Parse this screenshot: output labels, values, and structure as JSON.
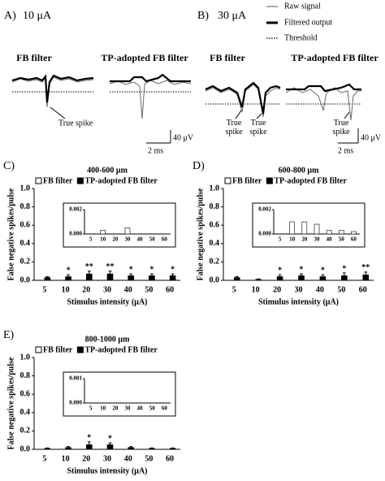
{
  "legend": {
    "items": [
      "Raw signal",
      "Filtered output",
      "Threshold"
    ]
  },
  "panel_a": {
    "label": "A)",
    "title": "10 μA",
    "subtitles": [
      "FB filter",
      "TP-adopted FB filter"
    ],
    "annotation": "True spike",
    "scale": [
      "40 μV",
      "2 ms"
    ]
  },
  "panel_b": {
    "label": "B)",
    "title": "30 μA",
    "subtitles": [
      "FB filter",
      "TP-adopted FB filter"
    ],
    "annotations": [
      "True\nspike",
      "True\nspike",
      "True\nspike"
    ],
    "scale": [
      "40 μV",
      "2 ms"
    ]
  },
  "chart_data": [
    {
      "type": "bar",
      "panel_label": "C)",
      "title": "400-600 μm",
      "xlabel": "Stimulus intensity (μA)",
      "ylabel": "False negative spikes/pulse",
      "categories": [
        "5",
        "10",
        "20",
        "30",
        "40",
        "50",
        "60"
      ],
      "series": [
        {
          "name": "FB filter",
          "color": "#ffffff",
          "values": [
            0,
            0.0003,
            0,
            0.0005,
            0,
            0,
            0
          ]
        },
        {
          "name": "TP-adopted FB filter",
          "color": "#000000",
          "values": [
            0.03,
            0.04,
            0.07,
            0.07,
            0.05,
            0.05,
            0.05
          ],
          "errors": [
            0.01,
            0.02,
            0.03,
            0.03,
            0.02,
            0.02,
            0.02
          ]
        }
      ],
      "significance": [
        null,
        "*",
        "**",
        "**",
        "*",
        "*",
        "*"
      ],
      "ylim": [
        0,
        1
      ],
      "yticks": [
        {
          "value": 0,
          "label": "0.0"
        },
        0.2,
        0.4,
        0.6,
        0.8,
        {
          "value": 1,
          "label": "1.0"
        }
      ],
      "inset": {
        "ylim": [
          0,
          0.002
        ],
        "yticks": [
          {
            "value": 0,
            "label": "0.000"
          },
          0.002
        ]
      }
    },
    {
      "type": "bar",
      "panel_label": "D)",
      "title": "600-800 μm",
      "xlabel": "Stimulus intensity (μA)",
      "ylabel": "False negative spikes/pulse",
      "categories": [
        "5",
        "10",
        "20",
        "30",
        "40",
        "50",
        "60"
      ],
      "series": [
        {
          "name": "FB filter",
          "color": "#ffffff",
          "values": [
            0,
            0.001,
            0.001,
            0.0008,
            0.0003,
            0.0003,
            0.0002
          ]
        },
        {
          "name": "TP-adopted FB filter",
          "color": "#000000",
          "values": [
            0.03,
            0.01,
            0.04,
            0.05,
            0.04,
            0.05,
            0.06
          ],
          "errors": [
            0.01,
            0.005,
            0.02,
            0.02,
            0.02,
            0.03,
            0.03
          ]
        }
      ],
      "significance": [
        null,
        null,
        "*",
        "*",
        "*",
        "*",
        "**"
      ],
      "ylim": [
        0,
        1
      ],
      "yticks": [
        {
          "value": 0,
          "label": "0.0"
        },
        0.2,
        0.4,
        0.6,
        0.8,
        {
          "value": 1,
          "label": "1.0"
        }
      ],
      "inset": {
        "ylim": [
          0,
          0.002
        ],
        "yticks": [
          {
            "value": 0,
            "label": "0.000"
          },
          0.002
        ]
      }
    },
    {
      "type": "bar",
      "panel_label": "E)",
      "title": "800-1000 μm",
      "xlabel": "Stimulus intensity (μA)",
      "ylabel": "False negative spikes/pulse",
      "categories": [
        "5",
        "10",
        "20",
        "30",
        "40",
        "50",
        "60"
      ],
      "series": [
        {
          "name": "FB filter",
          "color": "#ffffff",
          "values": [
            0,
            0,
            0,
            0,
            0,
            0,
            0
          ]
        },
        {
          "name": "TP-adopted FB filter",
          "color": "#000000",
          "values": [
            0.01,
            0.02,
            0.05,
            0.05,
            0.02,
            0.01,
            0.01
          ],
          "errors": [
            0.005,
            0.01,
            0.03,
            0.02,
            0.01,
            0.005,
            0.005
          ]
        }
      ],
      "significance": [
        null,
        null,
        "*",
        "*",
        null,
        null,
        null
      ],
      "ylim": [
        0,
        1
      ],
      "yticks": [
        {
          "value": 0,
          "label": "0.0"
        },
        0.2,
        0.4,
        0.6,
        0.8,
        {
          "value": 1,
          "label": "1.0"
        }
      ],
      "inset": {
        "ylim": [
          0,
          0.001
        ],
        "yticks": [
          {
            "value": 0,
            "label": "0.000"
          },
          0.001
        ]
      }
    }
  ]
}
